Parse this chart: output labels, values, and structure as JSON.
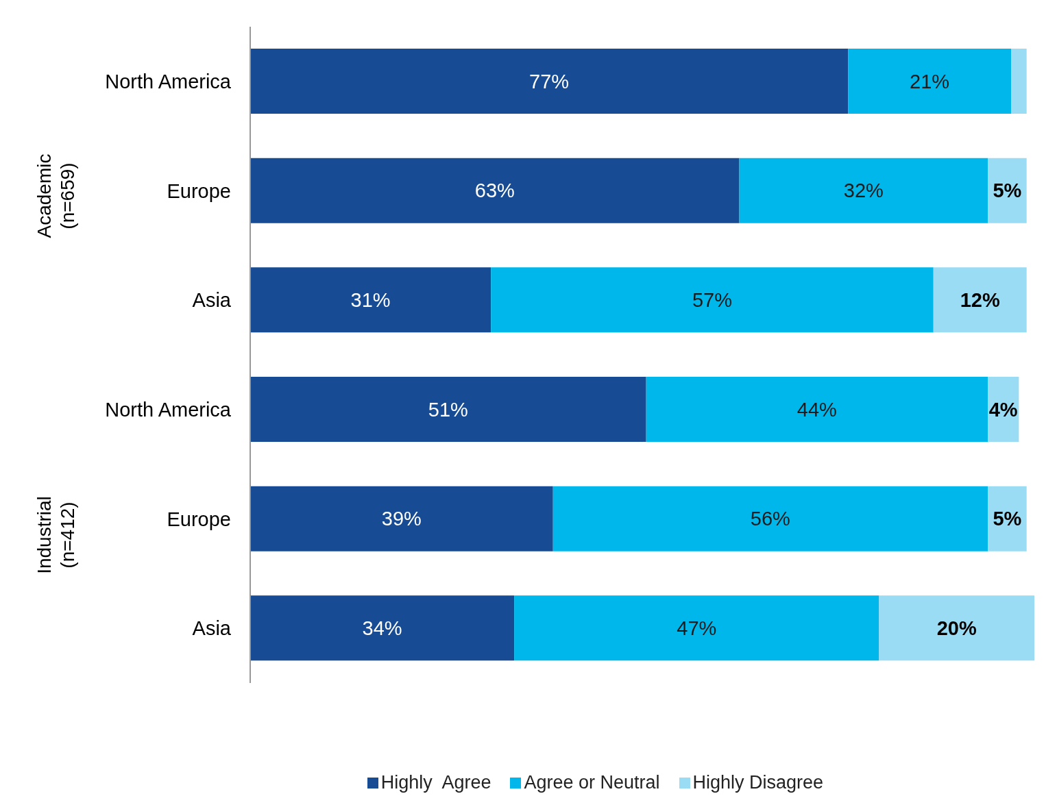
{
  "chart_data": {
    "type": "bar",
    "orientation": "horizontal",
    "stacked": true,
    "categories": [
      "North America",
      "Europe",
      "Asia",
      "North America",
      "Europe",
      "Asia"
    ],
    "series": [
      {
        "name": "Highly  Agree",
        "color": "#174b93",
        "values": [
          77,
          63,
          31,
          51,
          39,
          34
        ],
        "value_labels": [
          "77%",
          "63%",
          "31%",
          "51%",
          "39%",
          "34%"
        ]
      },
      {
        "name": "Agree or Neutral",
        "color": "#00b7eb",
        "values": [
          21,
          32,
          57,
          44,
          56,
          47
        ],
        "value_labels": [
          "21%",
          "32%",
          "57%",
          "44%",
          "56%",
          "47%"
        ]
      },
      {
        "name": "Highly Disagree",
        "color": "#9bdcf5",
        "values": [
          2,
          5,
          12,
          4,
          5,
          20
        ],
        "value_labels": [
          null,
          "5%",
          "12%",
          "4%",
          "5%",
          "20%"
        ]
      }
    ],
    "annotations": [
      "Academic (n=659)",
      "Industrial (n=412)"
    ],
    "legend": "bottom"
  }
}
